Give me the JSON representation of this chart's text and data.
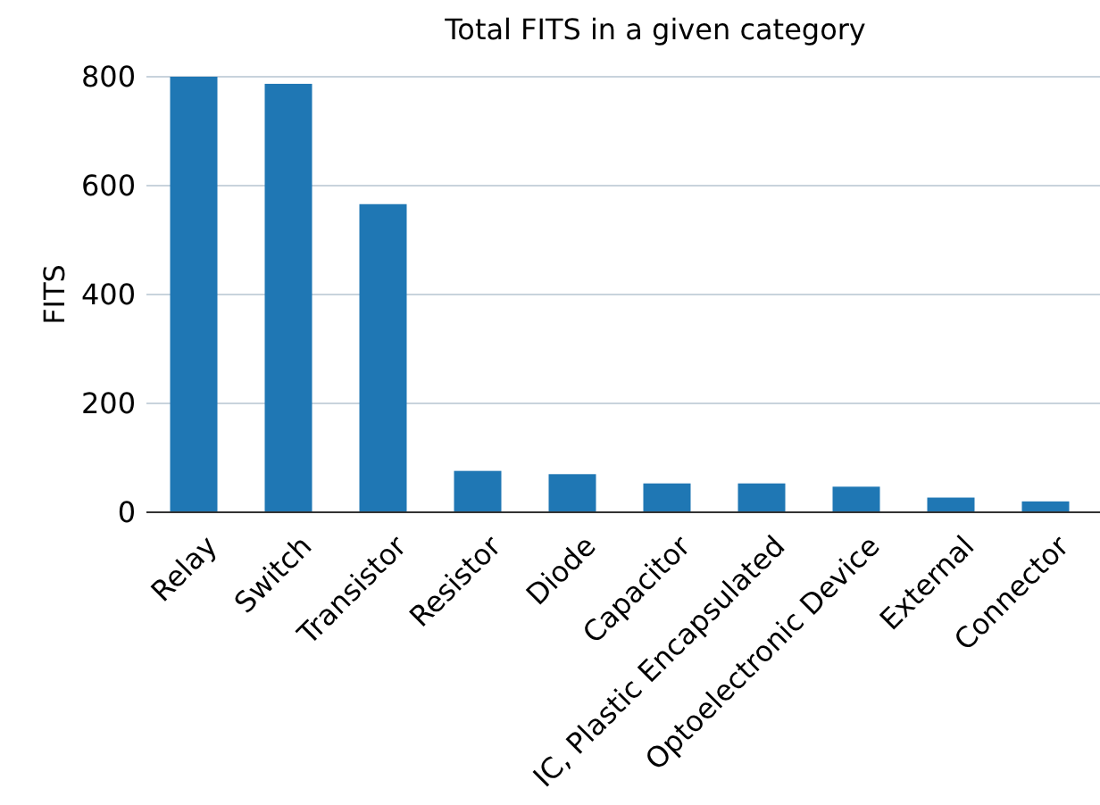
{
  "chart_data": {
    "type": "bar",
    "title": "Total FITS in a given category",
    "ylabel": "FITS",
    "categories": [
      "Relay",
      "Switch",
      "Transistor",
      "Resistor",
      "Diode",
      "Capacitor",
      "IC, Plastic Encapsulated",
      "Optoelectronic Device",
      "External",
      "Connector"
    ],
    "values": [
      800,
      787,
      566,
      76,
      70,
      53,
      53,
      47,
      27,
      20
    ],
    "color": "#1f77b4",
    "ylim": [
      0,
      800
    ],
    "yticks": [
      0,
      200,
      400,
      600,
      800
    ],
    "grid": "y"
  }
}
